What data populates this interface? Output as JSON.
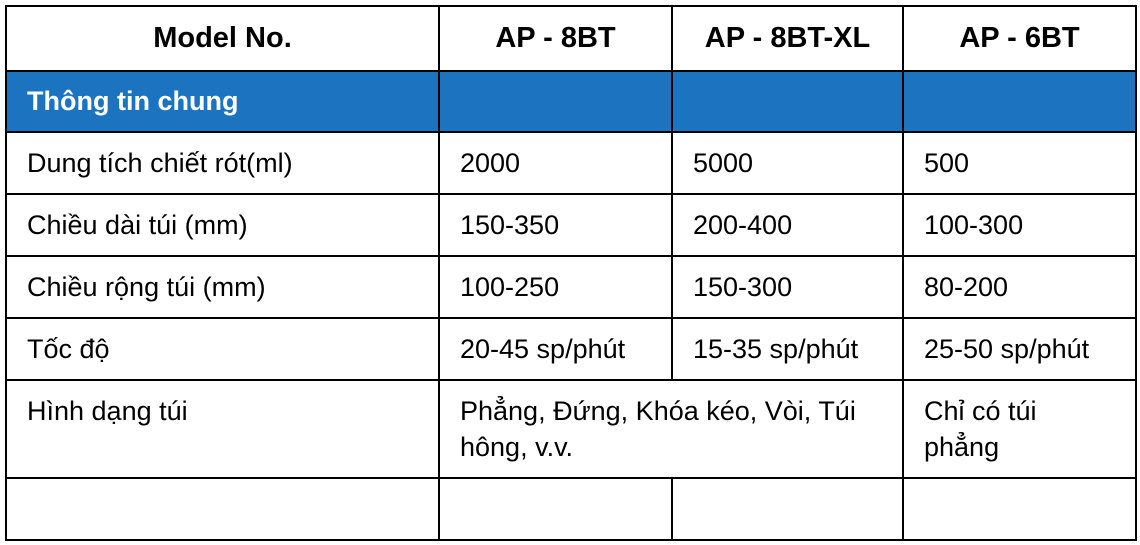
{
  "table": {
    "headers": [
      "Model No.",
      "AP - 8BT",
      "AP - 8BT-XL",
      "AP - 6BT"
    ],
    "section_title": "Thông tin chung",
    "rows": [
      {
        "label": "Dung tích chiết rót(ml)",
        "values": [
          "2000",
          "5000",
          "500"
        ]
      },
      {
        "label": "Chiều dài túi (mm)",
        "values": [
          "150-350",
          "200-400",
          "100-300"
        ]
      },
      {
        "label": "Chiều rộng túi (mm)",
        "values": [
          "100-250",
          "150-300",
          "80-200"
        ]
      },
      {
        "label": "Tốc độ",
        "values": [
          "20-45 sp/phút",
          "15-35 sp/phút",
          "25-50 sp/phút"
        ]
      }
    ],
    "shape_row": {
      "label": "Hình dạng túi",
      "merged_value": "Phẳng, Đứng, Khóa kéo, Vòi, Túi hông, v.v.",
      "last_value": "Chỉ có túi phẳng"
    },
    "colors": {
      "section_bg": "#1c73c0",
      "section_text": "#ffffff",
      "border": "#000000"
    }
  }
}
